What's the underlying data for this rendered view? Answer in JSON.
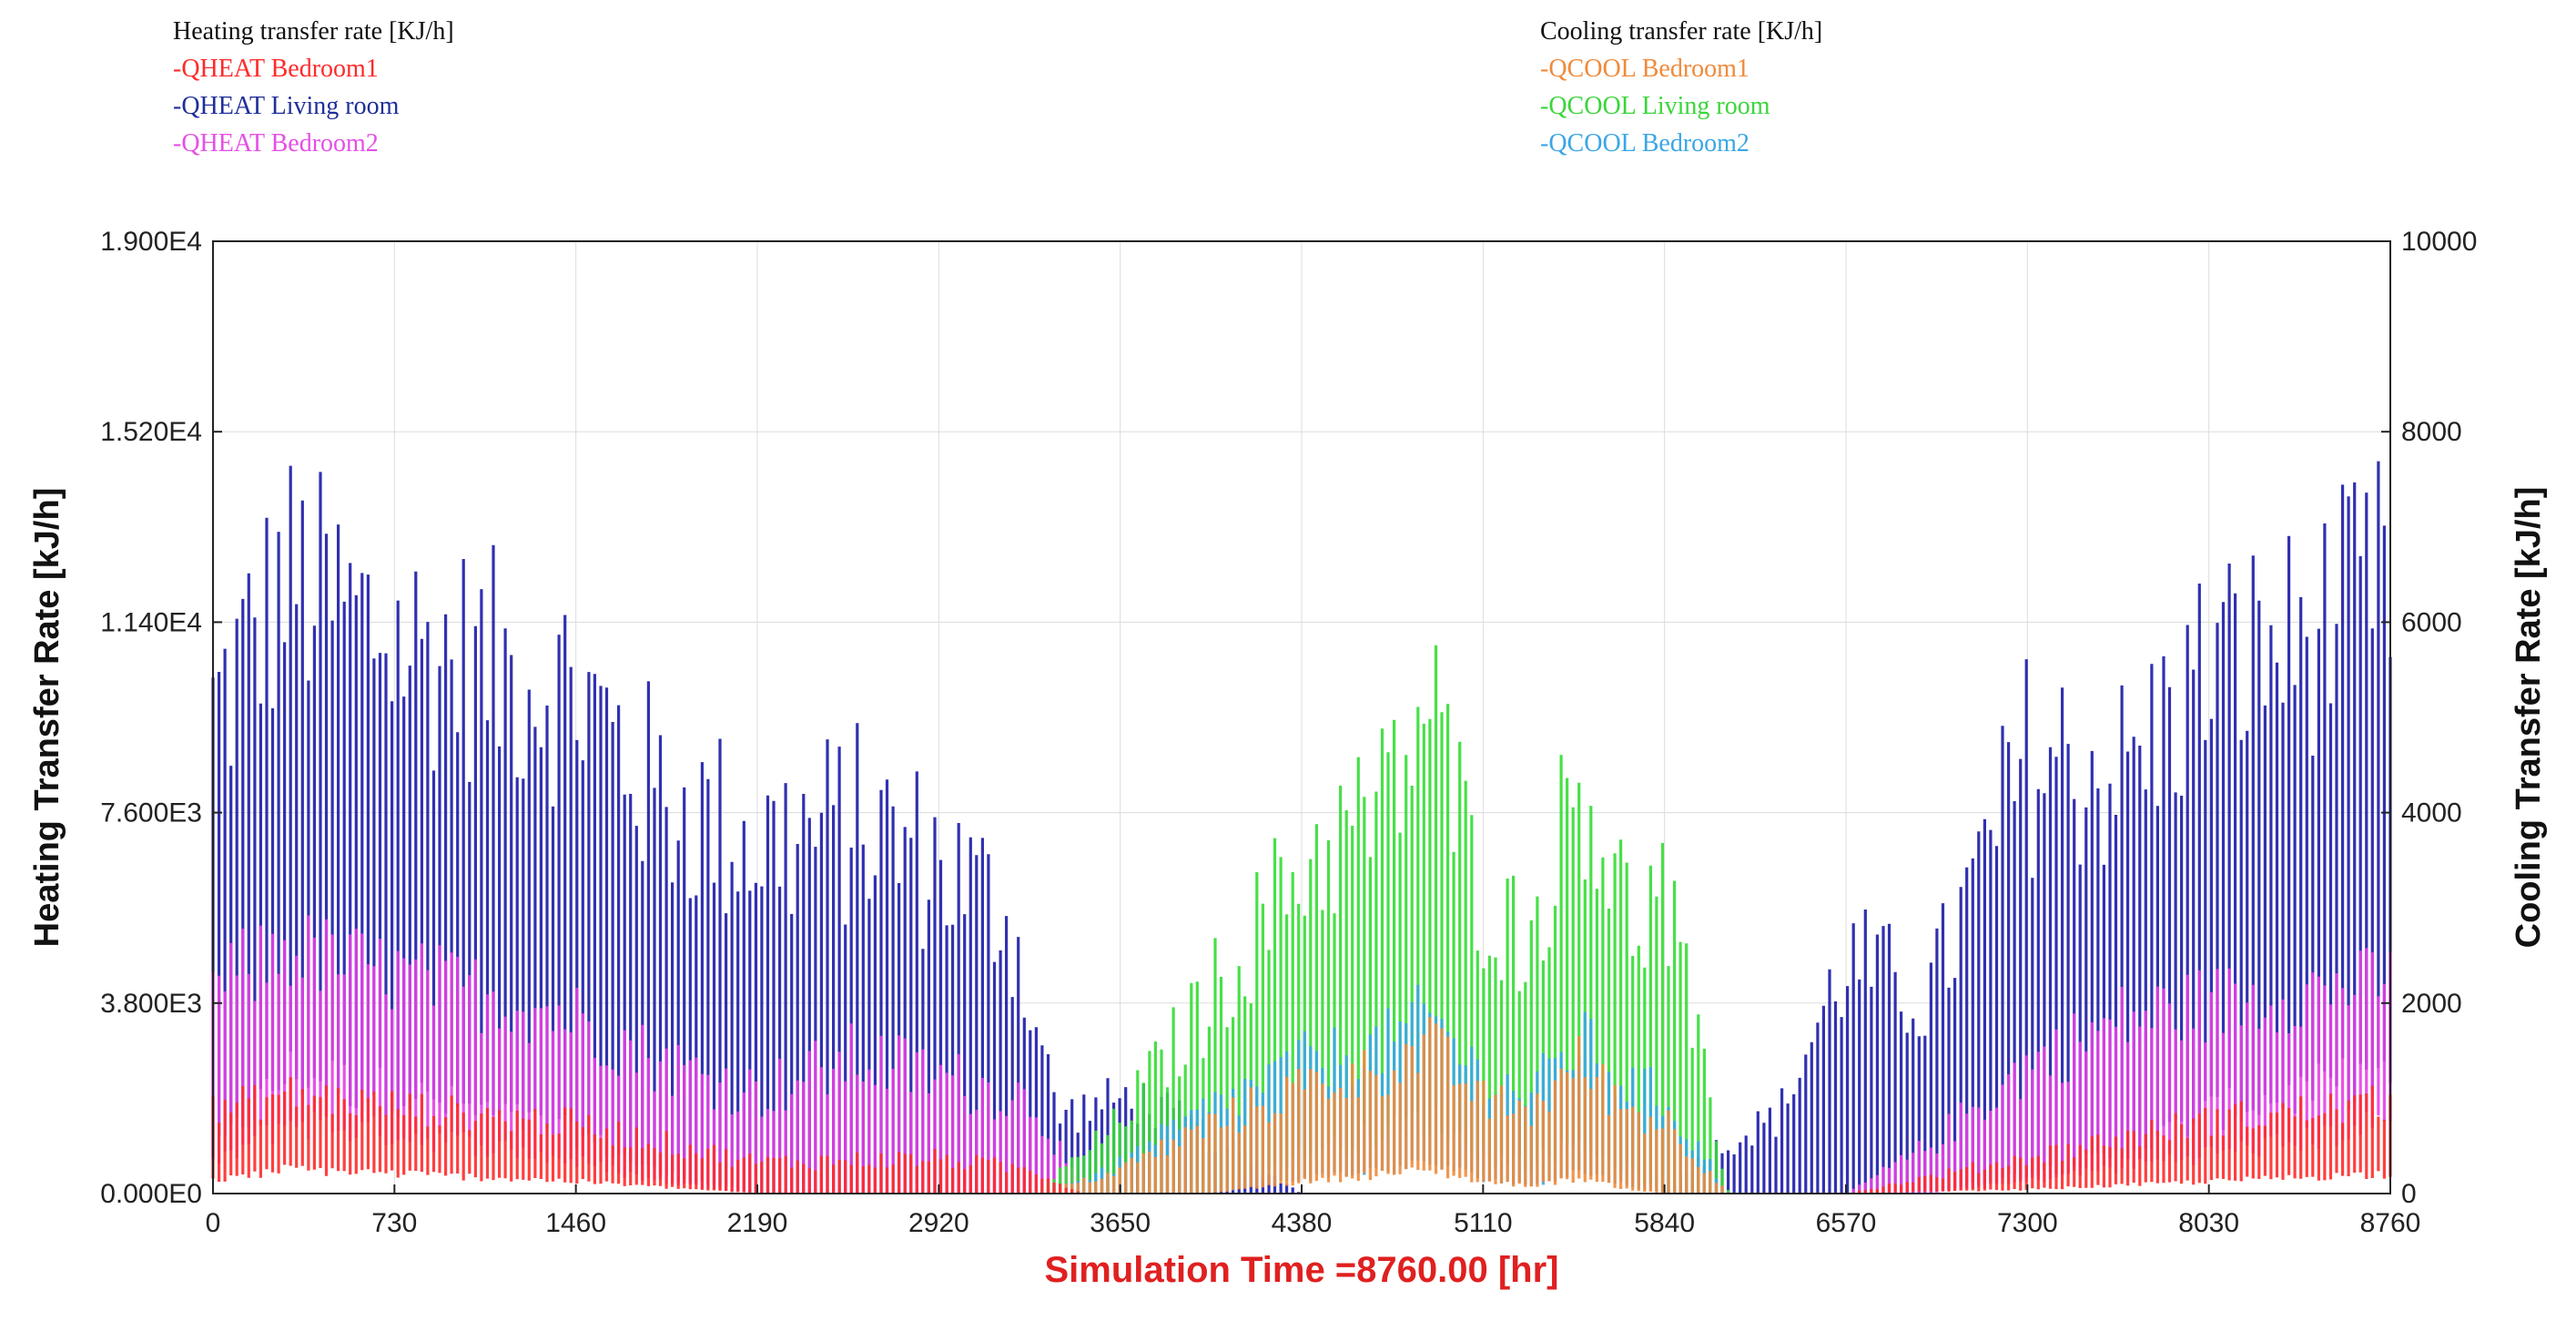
{
  "legend": {
    "heating": {
      "title": "Heating transfer rate [KJ/h]",
      "items": [
        {
          "label": "-QHEAT Bedroom1",
          "color": "#ff2a2a"
        },
        {
          "label": "-QHEAT Living room",
          "color": "#1f2f99"
        },
        {
          "label": "-QHEAT Bedroom2",
          "color": "#e64fe6"
        }
      ]
    },
    "cooling": {
      "title": "Cooling transfer rate [KJ/h]",
      "items": [
        {
          "label": "-QCOOL Bedroom1",
          "color": "#f08a3a"
        },
        {
          "label": "-QCOOL Living room",
          "color": "#3ad63a"
        },
        {
          "label": "-QCOOL Bedroom2",
          "color": "#3aa6e6"
        }
      ]
    }
  },
  "chart_data": {
    "type": "line",
    "xlabel": "Simulation Time =8760.00 [hr]",
    "xlabel_color": "#e02020",
    "ylabel_left": "Heating Transfer Rate [kJ/h]",
    "ylabel_right": "Cooling Transfer Rate [kJ/h]",
    "xlim": [
      0,
      8760
    ],
    "ylim_left": [
      0,
      19000
    ],
    "ylim_right": [
      0,
      10000
    ],
    "x_ticks": [
      "0",
      "730",
      "1460",
      "2190",
      "2920",
      "3650",
      "4380",
      "5110",
      "5840",
      "6570",
      "7300",
      "8030",
      "8760"
    ],
    "y_ticks_left": [
      "0.000E0",
      "3.800E3",
      "7.600E3",
      "1.140E4",
      "1.520E4",
      "1.900E4"
    ],
    "y_ticks_right": [
      "0",
      "2000",
      "4000",
      "6000",
      "8000",
      "10000"
    ],
    "grid": true,
    "legend_position": "top",
    "sample_interval_hr": 24,
    "series": [
      {
        "name": "-QHEAT Living room",
        "axis": "left",
        "color": "#1a1aa8",
        "envelope_x": [
          0,
          300,
          730,
          1100,
          1460,
          1800,
          2190,
          2600,
          2920,
          3200,
          3400,
          3700,
          4000,
          4380,
          5110,
          5840,
          6000,
          6300,
          6570,
          6900,
          7300,
          7700,
          8030,
          8400,
          8760
        ],
        "envelope_max": [
          12000,
          15000,
          13500,
          13000,
          12500,
          10000,
          9000,
          9500,
          8500,
          7200,
          2000,
          2500,
          1500,
          0,
          0,
          0,
          1000,
          2000,
          6000,
          5000,
          11000,
          10500,
          13000,
          13500,
          15000
        ],
        "envelope_min": [
          1000,
          3000,
          2500,
          2000,
          1500,
          500,
          0,
          0,
          0,
          0,
          0,
          0,
          0,
          0,
          0,
          0,
          0,
          0,
          0,
          0,
          500,
          1000,
          2000,
          2500,
          3000
        ]
      },
      {
        "name": "-QHEAT Bedroom2",
        "axis": "left",
        "color": "#e63fe6",
        "envelope_x": [
          0,
          300,
          730,
          1100,
          1460,
          1800,
          2190,
          2600,
          2920,
          3300,
          3500,
          6570,
          6900,
          7300,
          7700,
          8030,
          8400,
          8760
        ],
        "envelope_max": [
          5000,
          5800,
          5200,
          4800,
          4300,
          3300,
          2600,
          3500,
          3000,
          2400,
          0,
          0,
          1200,
          3200,
          4300,
          4600,
          4800,
          5000
        ],
        "envelope_min": [
          700,
          1800,
          1500,
          1200,
          800,
          300,
          0,
          0,
          0,
          0,
          0,
          0,
          0,
          300,
          700,
          1000,
          1300,
          1800
        ]
      },
      {
        "name": "-QCOOL Living room",
        "axis": "right",
        "color": "#33dd33",
        "envelope_x": [
          0,
          3300,
          3600,
          4000,
          4380,
          4700,
          4900,
          5110,
          5300,
          5500,
          5700,
          5840,
          6100,
          8760
        ],
        "envelope_max": [
          0,
          0,
          800,
          2600,
          4300,
          5000,
          6300,
          3800,
          3300,
          5600,
          3600,
          4000,
          0,
          0
        ],
        "envelope_min": [
          0,
          0,
          0,
          0,
          500,
          800,
          1000,
          500,
          400,
          700,
          300,
          0,
          0,
          0
        ]
      },
      {
        "name": "-QCOOL Bedroom2",
        "axis": "right",
        "color": "#3aa6e6",
        "envelope_x": [
          0,
          3300,
          3600,
          4000,
          4380,
          4700,
          4900,
          5110,
          5300,
          5500,
          5700,
          5840,
          6100,
          8760
        ],
        "envelope_max": [
          0,
          0,
          300,
          1100,
          1700,
          1900,
          2300,
          1500,
          1300,
          2000,
          1400,
          1300,
          0,
          0
        ],
        "envelope_min": [
          0,
          0,
          0,
          0,
          200,
          300,
          400,
          200,
          100,
          300,
          100,
          0,
          0,
          0
        ]
      },
      {
        "name": "-QCOOL Bedroom1",
        "axis": "right",
        "color": "#f08a3a",
        "envelope_x": [
          0,
          3300,
          3600,
          4000,
          4380,
          4700,
          4900,
          5110,
          5300,
          5500,
          5700,
          5840,
          6100,
          8760
        ],
        "envelope_max": [
          0,
          0,
          250,
          900,
          1400,
          1600,
          1900,
          1200,
          1100,
          1700,
          1100,
          1000,
          0,
          0
        ],
        "envelope_min": [
          0,
          0,
          0,
          0,
          150,
          250,
          300,
          150,
          100,
          200,
          50,
          0,
          0,
          0
        ]
      },
      {
        "name": "-QHEAT Bedroom1",
        "axis": "left",
        "color": "#ff2a2a",
        "envelope_x": [
          0,
          300,
          730,
          1460,
          2190,
          2920,
          3300,
          3500,
          6570,
          7300,
          8030,
          8760
        ],
        "envelope_max": [
          2000,
          2400,
          2100,
          1700,
          800,
          900,
          600,
          0,
          0,
          900,
          1800,
          2200
        ],
        "envelope_min": [
          300,
          600,
          500,
          300,
          0,
          0,
          0,
          0,
          0,
          100,
          300,
          500
        ]
      }
    ]
  }
}
